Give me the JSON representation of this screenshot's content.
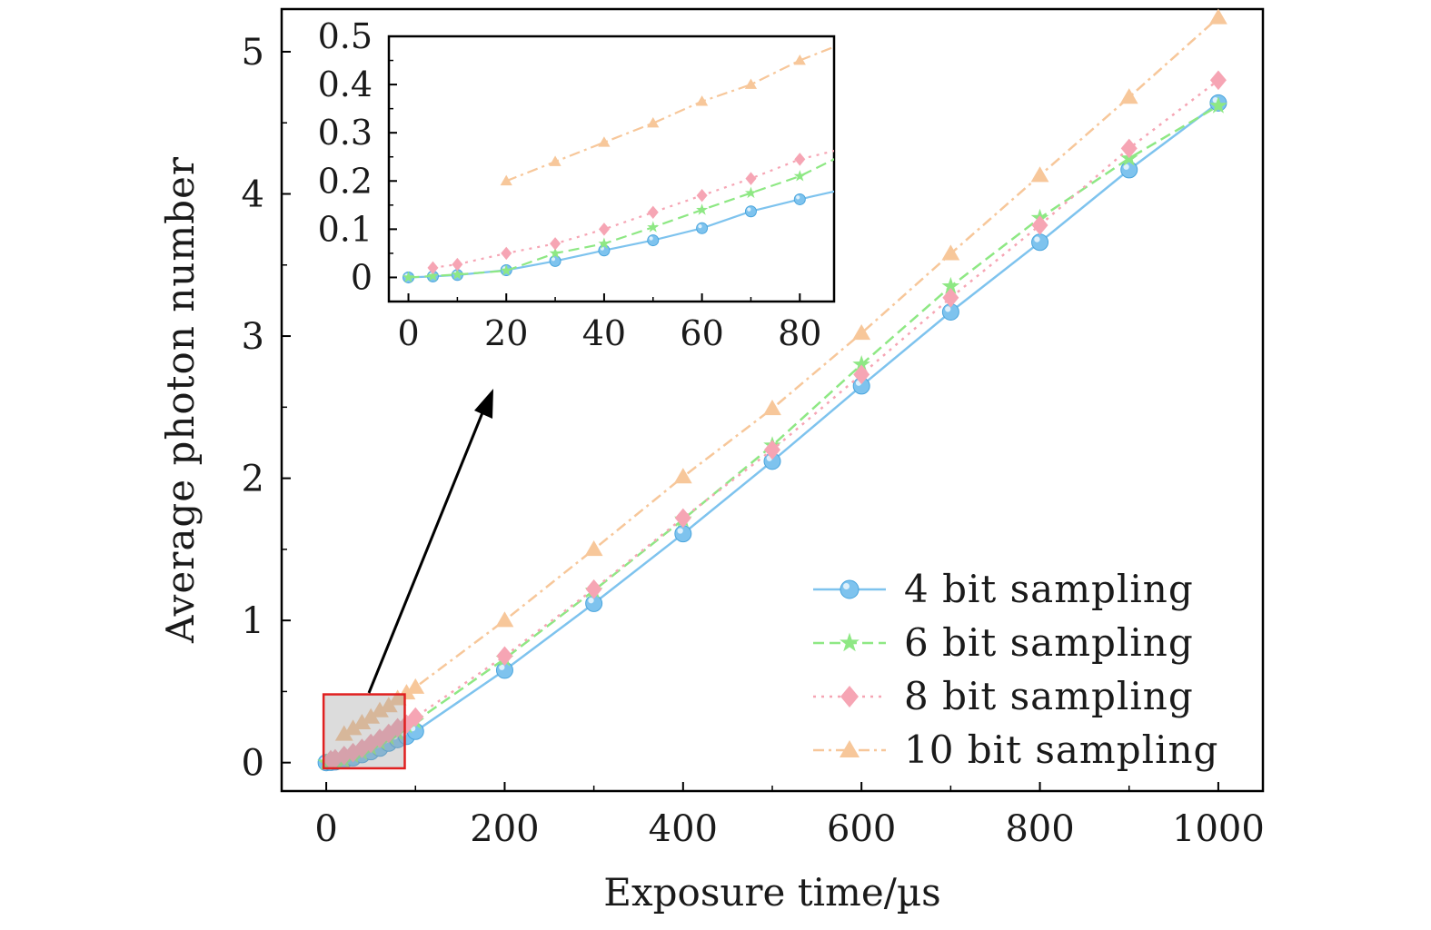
{
  "chart_data": [
    {
      "id": "main",
      "type": "line",
      "title": "",
      "xlabel": "Exposure time/µs",
      "ylabel": "Average photon number",
      "xlim": [
        -50,
        1050
      ],
      "ylim": [
        -0.2,
        5.3
      ],
      "xticks": [
        0,
        200,
        400,
        600,
        800,
        1000
      ],
      "yticks": [
        0,
        1,
        2,
        3,
        4,
        5
      ],
      "legend_position": "bottom-right",
      "series": [
        {
          "name": "4 bit sampling",
          "color": "#7ec3ee",
          "dash": "",
          "marker": "circle",
          "x": [
            0,
            5,
            10,
            20,
            30,
            40,
            50,
            60,
            70,
            80,
            90,
            100,
            200,
            300,
            400,
            500,
            600,
            700,
            800,
            900,
            1000
          ],
          "y": [
            0,
            0.002,
            0.005,
            0.015,
            0.034,
            0.056,
            0.077,
            0.102,
            0.137,
            0.162,
            0.185,
            0.22,
            0.65,
            1.12,
            1.61,
            2.12,
            2.65,
            3.17,
            3.66,
            4.17,
            4.64
          ]
        },
        {
          "name": "6 bit sampling",
          "color": "#8ee884",
          "dash": "12,6",
          "marker": "star",
          "x": [
            0,
            5,
            10,
            20,
            30,
            40,
            50,
            60,
            70,
            80,
            90,
            100,
            200,
            300,
            400,
            500,
            600,
            700,
            800,
            900,
            1000
          ],
          "y": [
            0,
            0.003,
            0.006,
            0.014,
            0.05,
            0.07,
            0.104,
            0.14,
            0.175,
            0.21,
            0.26,
            0.29,
            0.73,
            1.21,
            1.71,
            2.23,
            2.8,
            3.35,
            3.83,
            4.25,
            4.62
          ]
        },
        {
          "name": "8 bit sampling",
          "color": "#f6a5b4",
          "dash": "3,6",
          "marker": "diamond",
          "x": [
            5,
            10,
            20,
            30,
            40,
            50,
            60,
            70,
            80,
            90,
            100,
            200,
            300,
            400,
            500,
            600,
            700,
            800,
            900,
            1000
          ],
          "y": [
            0.02,
            0.027,
            0.05,
            0.07,
            0.1,
            0.135,
            0.17,
            0.205,
            0.245,
            0.27,
            0.32,
            0.75,
            1.22,
            1.72,
            2.2,
            2.73,
            3.27,
            3.78,
            4.32,
            4.8
          ]
        },
        {
          "name": "10 bit sampling",
          "color": "#f7c79a",
          "dash": "12,5,3,5",
          "marker": "triangle",
          "x": [
            20,
            30,
            40,
            50,
            60,
            70,
            80,
            90,
            100,
            200,
            300,
            400,
            500,
            600,
            700,
            800,
            900,
            1000
          ],
          "y": [
            0.2,
            0.24,
            0.28,
            0.32,
            0.365,
            0.4,
            0.45,
            0.49,
            0.53,
            1.0,
            1.5,
            2.01,
            2.49,
            3.02,
            3.58,
            4.13,
            4.68,
            5.24
          ]
        }
      ]
    },
    {
      "id": "inset",
      "type": "line",
      "title": "",
      "xlabel": "",
      "ylabel": "",
      "xlim": [
        -4,
        87
      ],
      "ylim": [
        -0.05,
        0.5
      ],
      "xticks": [
        0,
        20,
        40,
        60,
        80
      ],
      "yticks": [
        0,
        0.1,
        0.2,
        0.3,
        0.4,
        0.5
      ],
      "note": "zoomed view of the region 0-85 µs"
    }
  ]
}
